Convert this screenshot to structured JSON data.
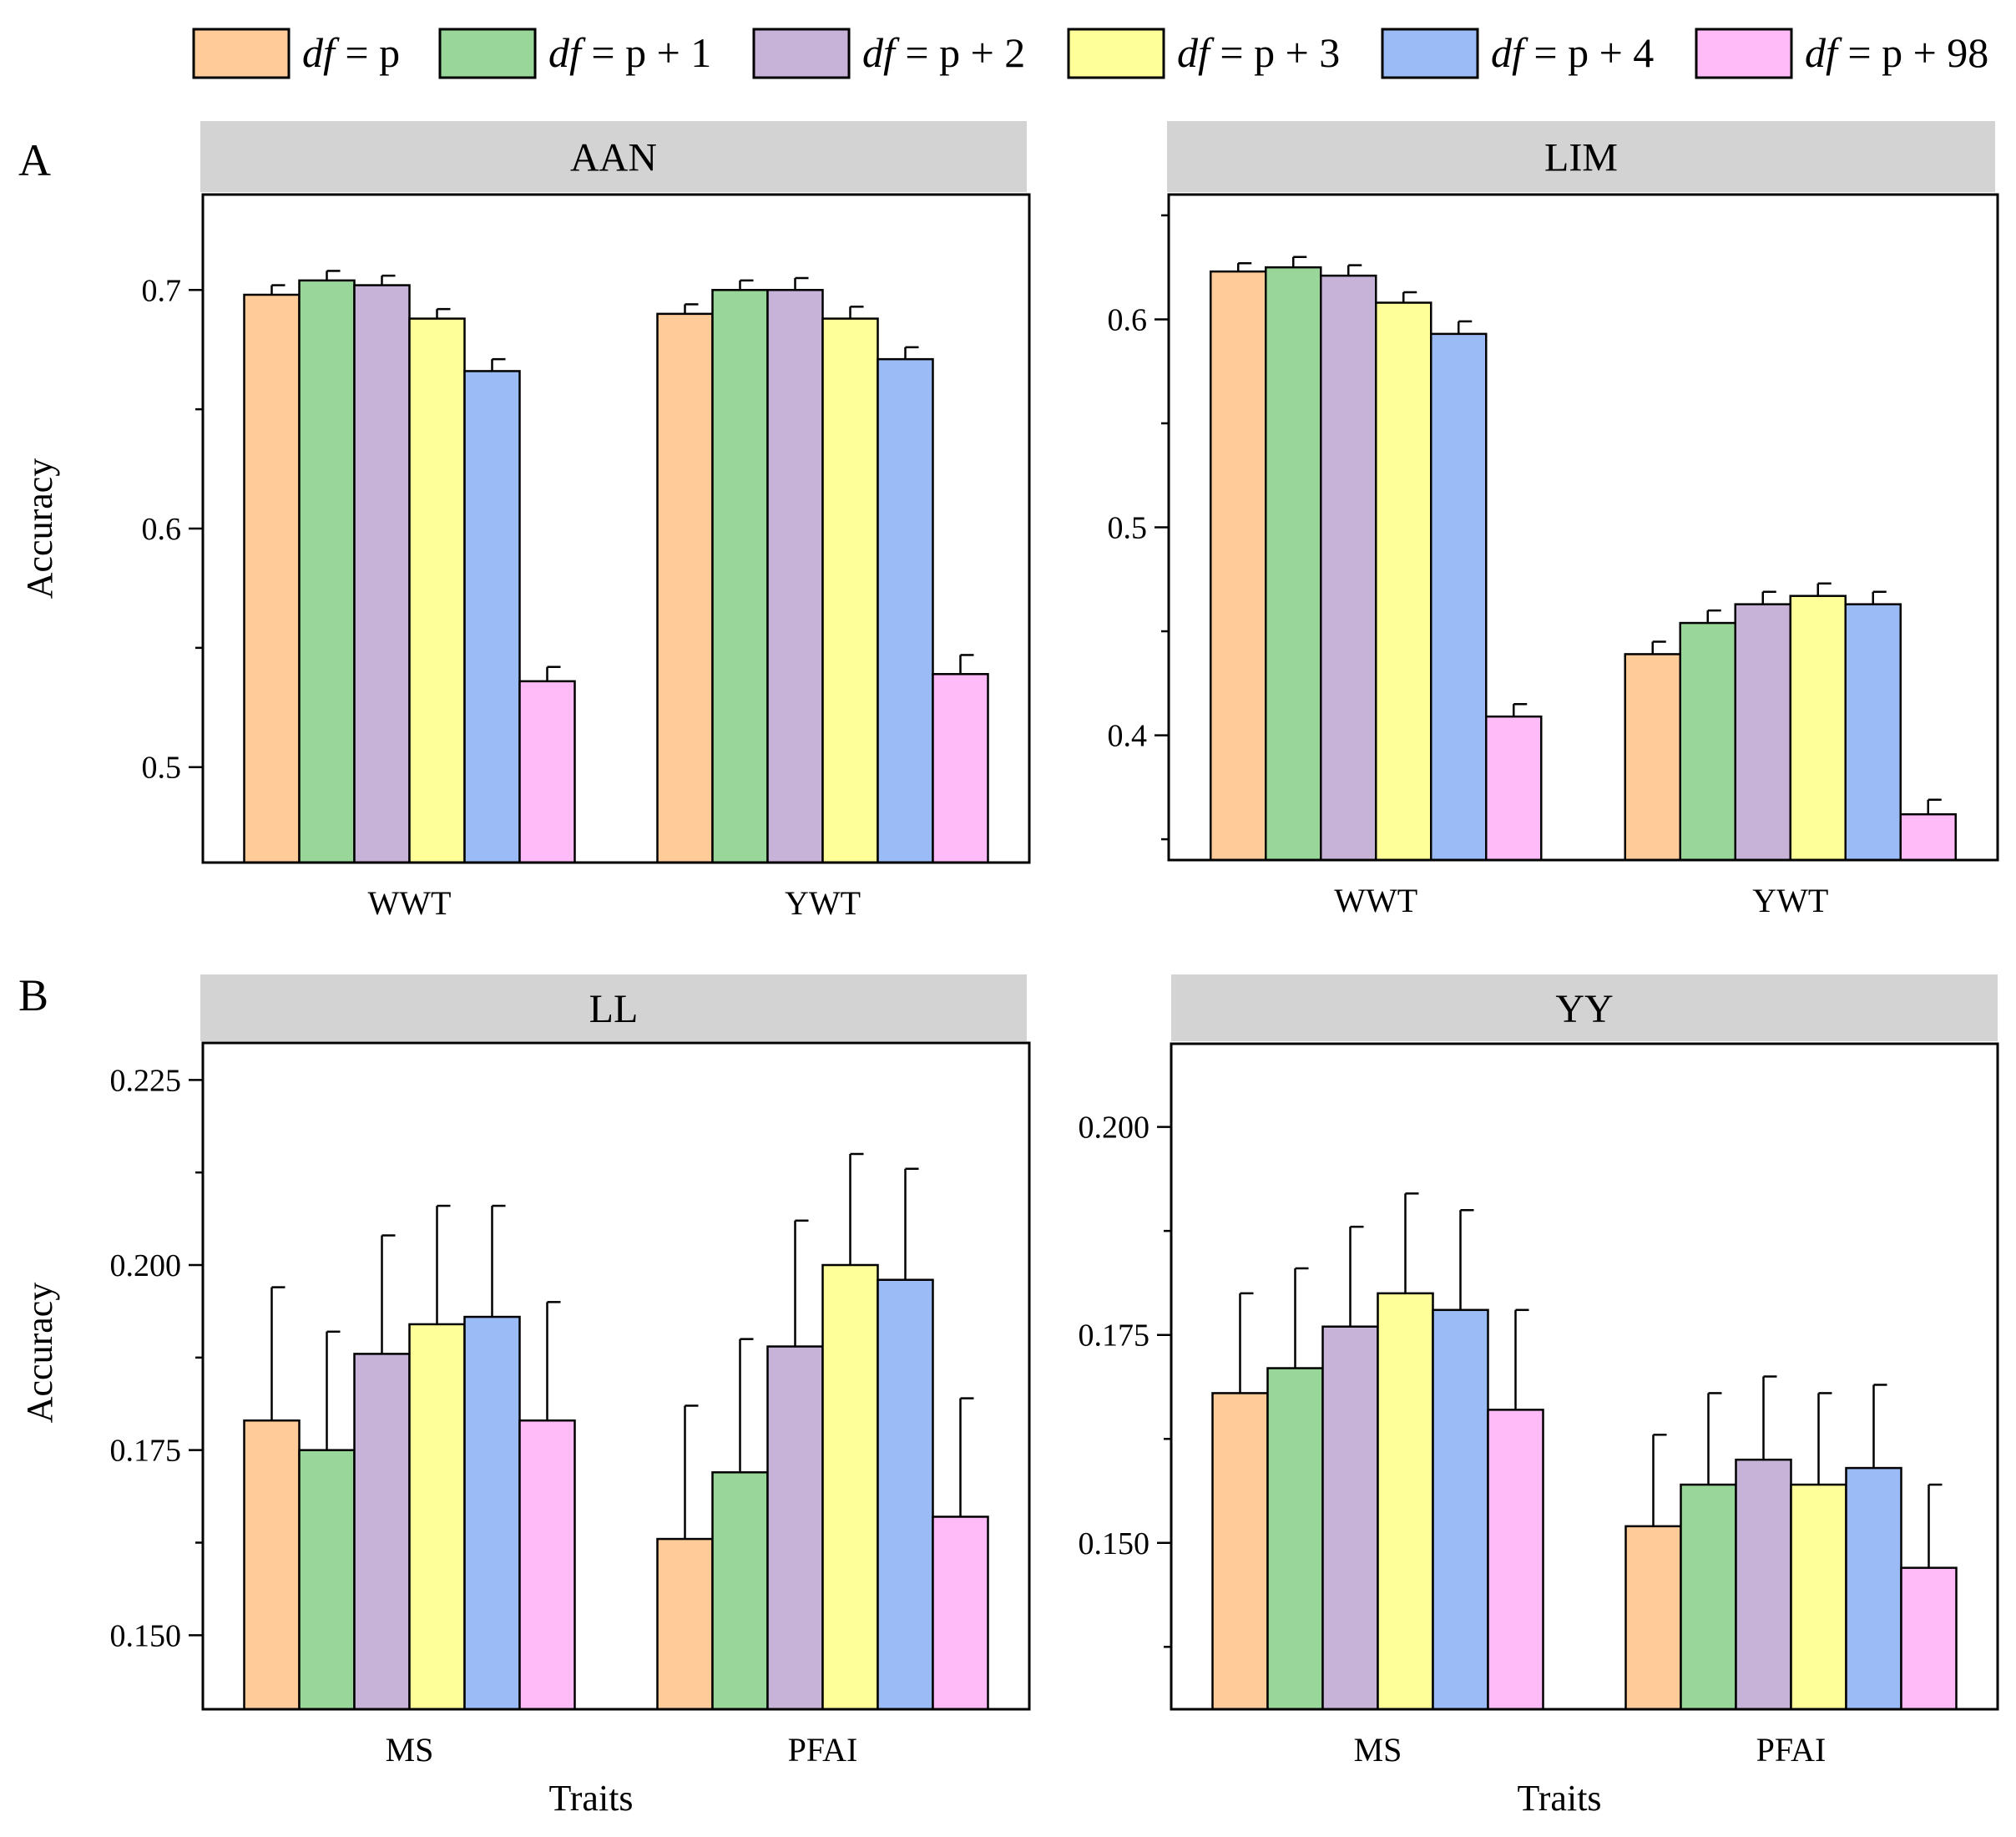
{
  "legend": [
    {
      "italic": "df",
      "rest": " = p",
      "color": "#FFCC99"
    },
    {
      "italic": "df",
      "rest": " = p + 1",
      "color": "#99D699"
    },
    {
      "italic": "df",
      "rest": " = p + 2",
      "color": "#C7B3D8"
    },
    {
      "italic": "df",
      "rest": " = p + 3",
      "color": "#FFFF99"
    },
    {
      "italic": "df",
      "rest": " = p + 4",
      "color": "#9BBBF6"
    },
    {
      "italic": "df",
      "rest": " = p + 98",
      "color": "#FFBBF7"
    }
  ],
  "section_labels": [
    "A",
    "B"
  ],
  "chart_data": [
    {
      "type": "bar",
      "title": "AAN",
      "section": "A",
      "ylabel": "Accuracy",
      "xlabel": "",
      "categories": [
        "WWT",
        "YWT"
      ],
      "ylim": [
        0.46,
        0.74
      ],
      "yticks": [
        "0.5",
        "0.6",
        "0.7"
      ],
      "tick_values": [
        0.5,
        0.6,
        0.7
      ],
      "minor_step": 0.05,
      "series": [
        {
          "name": "df = p",
          "values": [
            0.698,
            0.69
          ],
          "errors": [
            0.004,
            0.004
          ]
        },
        {
          "name": "df = p + 1",
          "values": [
            0.704,
            0.7
          ],
          "errors": [
            0.004,
            0.004
          ]
        },
        {
          "name": "df = p + 2",
          "values": [
            0.702,
            0.7
          ],
          "errors": [
            0.004,
            0.005
          ]
        },
        {
          "name": "df = p + 3",
          "values": [
            0.688,
            0.688
          ],
          "errors": [
            0.004,
            0.005
          ]
        },
        {
          "name": "df = p + 4",
          "values": [
            0.666,
            0.671
          ],
          "errors": [
            0.005,
            0.005
          ]
        },
        {
          "name": "df = p + 98",
          "values": [
            0.536,
            0.539
          ],
          "errors": [
            0.006,
            0.008
          ]
        }
      ]
    },
    {
      "type": "bar",
      "title": "LIM",
      "section": "A",
      "ylabel": "",
      "xlabel": "",
      "categories": [
        "WWT",
        "YWT"
      ],
      "ylim": [
        0.34,
        0.66
      ],
      "yticks": [
        "0.4",
        "0.5",
        "0.6"
      ],
      "tick_values": [
        0.4,
        0.5,
        0.6
      ],
      "minor_step": 0.05,
      "series": [
        {
          "name": "df = p",
          "values": [
            0.623,
            0.439
          ],
          "errors": [
            0.004,
            0.006
          ]
        },
        {
          "name": "df = p + 1",
          "values": [
            0.625,
            0.454
          ],
          "errors": [
            0.005,
            0.006
          ]
        },
        {
          "name": "df = p + 2",
          "values": [
            0.621,
            0.463
          ],
          "errors": [
            0.005,
            0.006
          ]
        },
        {
          "name": "df = p + 3",
          "values": [
            0.608,
            0.467
          ],
          "errors": [
            0.005,
            0.006
          ]
        },
        {
          "name": "df = p + 4",
          "values": [
            0.593,
            0.463
          ],
          "errors": [
            0.006,
            0.006
          ]
        },
        {
          "name": "df = p + 98",
          "values": [
            0.409,
            0.362
          ],
          "errors": [
            0.006,
            0.007
          ]
        }
      ]
    },
    {
      "type": "bar",
      "title": "LL",
      "section": "B",
      "ylabel": "Accuracy",
      "xlabel": "Traits",
      "categories": [
        "MS",
        "PFAI"
      ],
      "ylim": [
        0.14,
        0.23
      ],
      "yticks": [
        "0.150",
        "0.175",
        "0.200",
        "0.225"
      ],
      "tick_values": [
        0.15,
        0.175,
        0.2,
        0.225
      ],
      "minor_step": 0.0125,
      "series": [
        {
          "name": "df = p",
          "values": [
            0.179,
            0.163
          ],
          "errors": [
            0.018,
            0.018
          ]
        },
        {
          "name": "df = p + 1",
          "values": [
            0.175,
            0.172
          ],
          "errors": [
            0.016,
            0.018
          ]
        },
        {
          "name": "df = p + 2",
          "values": [
            0.188,
            0.189
          ],
          "errors": [
            0.016,
            0.017
          ]
        },
        {
          "name": "df = p + 3",
          "values": [
            0.192,
            0.2
          ],
          "errors": [
            0.016,
            0.015
          ]
        },
        {
          "name": "df = p + 4",
          "values": [
            0.193,
            0.198
          ],
          "errors": [
            0.015,
            0.015
          ]
        },
        {
          "name": "df = p + 98",
          "values": [
            0.179,
            0.166
          ],
          "errors": [
            0.016,
            0.016
          ]
        }
      ]
    },
    {
      "type": "bar",
      "title": "YY",
      "section": "B",
      "ylabel": "",
      "xlabel": "Traits",
      "categories": [
        "MS",
        "PFAI"
      ],
      "ylim": [
        0.13,
        0.21
      ],
      "yticks": [
        "0.150",
        "0.175",
        "0.200"
      ],
      "tick_values": [
        0.15,
        0.175,
        0.2
      ],
      "minor_step": 0.0125,
      "series": [
        {
          "name": "df = p",
          "values": [
            0.168,
            0.152
          ],
          "errors": [
            0.012,
            0.011
          ]
        },
        {
          "name": "df = p + 1",
          "values": [
            0.171,
            0.157
          ],
          "errors": [
            0.012,
            0.011
          ]
        },
        {
          "name": "df = p + 2",
          "values": [
            0.176,
            0.16
          ],
          "errors": [
            0.012,
            0.01
          ]
        },
        {
          "name": "df = p + 3",
          "values": [
            0.18,
            0.157
          ],
          "errors": [
            0.012,
            0.011
          ]
        },
        {
          "name": "df = p + 4",
          "values": [
            0.178,
            0.159
          ],
          "errors": [
            0.012,
            0.01
          ]
        },
        {
          "name": "df = p + 98",
          "values": [
            0.166,
            0.147
          ],
          "errors": [
            0.012,
            0.01
          ]
        }
      ]
    }
  ]
}
